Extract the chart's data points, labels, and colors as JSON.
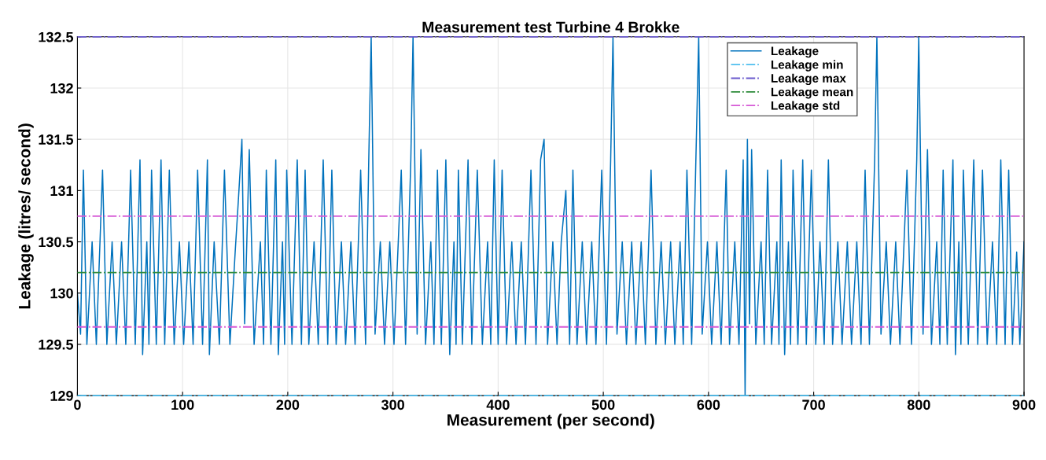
{
  "chart_data": {
    "type": "line",
    "title": "Measurement test Turbine 4 Brokke",
    "xlabel": "Measurement (per second)",
    "ylabel": "Leakage (litres/ second)",
    "xlim": [
      0,
      900
    ],
    "xticks": [
      0,
      100,
      200,
      300,
      400,
      500,
      600,
      700,
      800,
      900
    ],
    "ylim": [
      129,
      132.5
    ],
    "yticks": [
      129,
      129.5,
      130,
      130.5,
      131,
      131.5,
      132,
      132.5
    ],
    "grid": true,
    "legend": "top right",
    "line_style": "solid",
    "series": [
      {
        "name": "Leakage",
        "color": "#0072bd",
        "x": [
          0,
          3,
          5.7,
          9,
          14,
          18,
          23.9,
          28,
          33,
          37,
          42,
          46,
          50.6,
          55,
          59.5,
          62,
          66,
          68,
          70.5,
          75,
          79.5,
          83,
          87.4,
          92,
          97,
          101,
          106,
          110,
          114.3,
          119,
          123.6,
          125.5,
          130,
          135,
          139.8,
          145,
          150,
          153,
          156.4,
          159,
          163.4,
          168,
          174,
          177,
          179.6,
          184,
          188.6,
          191,
          195,
          197,
          199,
          204,
          209,
          213,
          216.5,
          220,
          225,
          229,
          233.7,
          238,
          241.9,
          246,
          251,
          255,
          260,
          264,
          269.3,
          274,
          277,
          279.3,
          283,
          288,
          292,
          297,
          301,
          307.9,
          312,
          317,
          319.1,
          323,
          326.6,
          331,
          336,
          339,
          342.3,
          346,
          350.3,
          354,
          358,
          360,
          362.2,
          366,
          371.4,
          375,
          380.2,
          385,
          390,
          393,
          396.3,
          400,
          403.8,
          408,
          413,
          417,
          422,
          426,
          431.2,
          436,
          440.4,
          443.7,
          447,
          452,
          456,
          460,
          464.4,
          468,
          471.1,
          475,
          480,
          484,
          489,
          493,
          498.5,
          503,
          507,
          509.2,
          513,
          518,
          522,
          527,
          531,
          536,
          540,
          545.4,
          550,
          555,
          559,
          564,
          568,
          573,
          576,
          579.5,
          584,
          588,
          590.7,
          594,
          599,
          603,
          608,
          612,
          616.8,
          620,
          625,
          629,
          633,
          634.8,
          637,
          639,
          641,
          645,
          650,
          653,
          656.2,
          660,
          665,
          667,
          669.1,
          672.4,
          676,
          678,
          680.4,
          685,
          689.6,
          693,
          697.8,
          702,
          706,
          710,
          714,
          718,
          723,
          727,
          732,
          736,
          741,
          745,
          748.9,
          753,
          758,
          760.1,
          764,
          769,
          773,
          778,
          782,
          788.7,
          793,
          798,
          799.9,
          804,
          808.2,
          812,
          817,
          820,
          823.1,
          827,
          832.4,
          834.8,
          838,
          840,
          842.3,
          847,
          852.2,
          856,
          860.5,
          865,
          870,
          874,
          877.9,
          882,
          885.4,
          889,
          893,
          896,
          900
        ],
        "values": [
          130.0,
          129.6,
          131.2,
          129.5,
          130.5,
          129.5,
          131.2,
          129.5,
          130.5,
          129.5,
          130.5,
          129.5,
          131.2,
          129.5,
          131.3,
          129.4,
          130.5,
          129.5,
          131.2,
          129.5,
          131.3,
          129.5,
          131.2,
          129.5,
          130.5,
          129.5,
          130.5,
          129.5,
          131.2,
          129.5,
          131.3,
          129.4,
          130.5,
          129.5,
          131.2,
          129.5,
          130.4,
          130.9,
          131.5,
          129.7,
          131.4,
          129.5,
          130.5,
          129.5,
          131.2,
          129.5,
          131.3,
          129.4,
          130.5,
          129.5,
          131.2,
          129.5,
          131.3,
          129.5,
          131.2,
          129.5,
          130.5,
          129.5,
          131.3,
          129.5,
          131.2,
          129.5,
          130.5,
          129.5,
          130.5,
          129.5,
          131.2,
          129.5,
          131.3,
          132.5,
          129.6,
          130.5,
          129.5,
          130.5,
          129.5,
          131.2,
          129.5,
          131.3,
          132.5,
          129.6,
          131.4,
          129.5,
          130.5,
          129.5,
          131.2,
          129.5,
          131.3,
          129.4,
          130.5,
          129.5,
          131.2,
          129.5,
          131.3,
          129.5,
          131.2,
          129.5,
          130.5,
          129.5,
          131.3,
          129.5,
          131.2,
          129.5,
          130.5,
          129.5,
          130.5,
          129.5,
          131.2,
          129.5,
          131.3,
          131.5,
          129.5,
          130.5,
          129.5,
          130.5,
          131.0,
          129.5,
          131.2,
          129.5,
          130.5,
          129.5,
          130.5,
          129.5,
          131.2,
          129.5,
          131.3,
          132.5,
          129.6,
          130.5,
          129.5,
          130.5,
          129.5,
          130.5,
          129.5,
          131.2,
          129.5,
          130.5,
          129.5,
          130.5,
          129.5,
          130.5,
          129.5,
          131.2,
          129.5,
          131.3,
          132.5,
          129.6,
          130.5,
          129.5,
          130.5,
          129.5,
          131.2,
          129.5,
          130.5,
          129.5,
          131.3,
          129.0,
          131.5,
          129.7,
          131.4,
          129.5,
          130.5,
          129.5,
          131.2,
          129.5,
          130.5,
          129.5,
          131.3,
          129.4,
          130.5,
          129.5,
          131.2,
          129.5,
          131.3,
          129.5,
          131.2,
          129.5,
          130.5,
          129.5,
          131.3,
          129.5,
          130.5,
          129.5,
          130.5,
          129.5,
          130.5,
          129.5,
          131.2,
          129.5,
          131.3,
          132.5,
          129.6,
          130.5,
          129.5,
          130.5,
          129.5,
          131.2,
          129.5,
          131.3,
          132.5,
          129.6,
          131.4,
          129.5,
          130.5,
          129.5,
          131.2,
          129.5,
          131.3,
          129.4,
          130.5,
          129.5,
          131.2,
          129.5,
          131.3,
          129.5,
          131.2,
          129.5,
          130.5,
          129.5,
          131.3,
          129.5,
          131.2,
          129.5,
          130.4,
          129.5,
          130.5
        ]
      }
    ],
    "ref_lines": [
      {
        "axis": "y",
        "value": 129,
        "label": "Leakage min",
        "color": "#4dbeee",
        "line_style": "dashdot"
      },
      {
        "axis": "y",
        "value": 132.5,
        "label": "Leakage max",
        "color": "#6a5acd",
        "line_style": "dashdot"
      },
      {
        "axis": "y",
        "value": 130.2,
        "label": "Leakage mean",
        "color": "#2e8b3a",
        "line_style": "dashdot"
      },
      {
        "axis": "y",
        "value": 130.75,
        "label": "Leakage std",
        "color": "#d65ad6",
        "line_style": "dashdot"
      },
      {
        "axis": "y",
        "value": 129.67,
        "color": "#d65ad6",
        "line_style": "dashdot"
      }
    ]
  }
}
